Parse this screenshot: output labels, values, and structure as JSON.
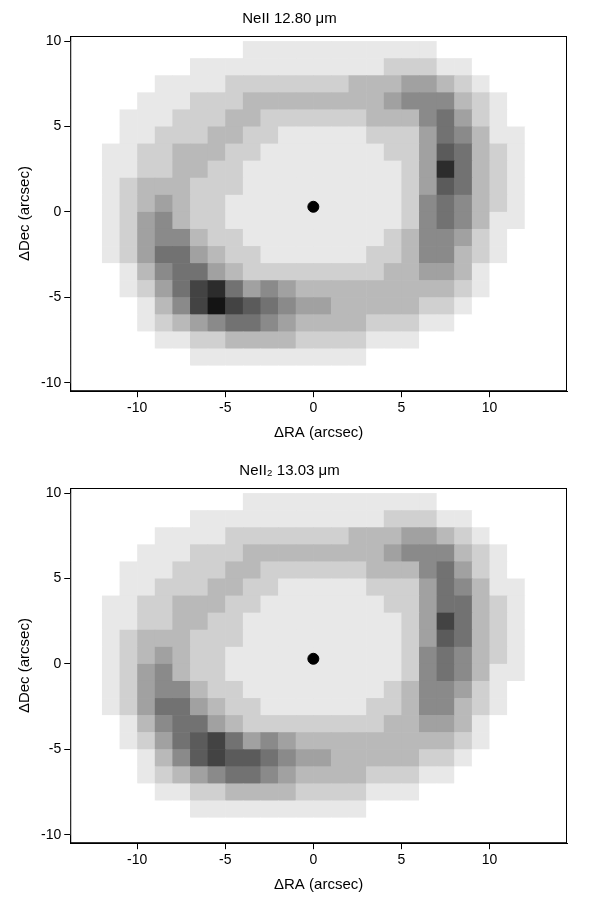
{
  "chart_data": [
    {
      "type": "heatmap",
      "title": "NeII 12.80 μm",
      "x_label": "ΔRA (arcsec)",
      "y_label": "ΔDec (arcsec)",
      "xlim": [
        -13.8,
        14.4
      ],
      "ylim": [
        -10.5,
        10.3
      ],
      "xticks": [
        -10,
        -5,
        0,
        5,
        10
      ],
      "yticks": [
        -10,
        -5,
        0,
        5,
        10
      ],
      "grid": false,
      "x_centers": [
        -13.5,
        -12.5,
        -11.5,
        -10.5,
        -9.5,
        -8.5,
        -7.5,
        -6.5,
        -5.5,
        -4.5,
        -3.5,
        -2.5,
        -1.5,
        -0.5,
        0.5,
        1.5,
        2.5,
        3.5,
        4.5,
        5.5,
        6.5,
        7.5,
        8.5,
        9.5,
        10.5,
        11.5,
        12.5,
        13.5
      ],
      "y_centers": [
        9.5,
        8.5,
        7.5,
        6.5,
        5.5,
        4.5,
        3.5,
        2.5,
        1.5,
        0.5,
        -0.5,
        -1.5,
        -2.5,
        -3.5,
        -4.5,
        -5.5,
        -6.5,
        -7.5,
        -8.5,
        -9.5
      ],
      "zlim": [
        0,
        10
      ],
      "cells": [
        [
          0,
          0,
          0,
          0,
          0,
          0,
          0,
          0,
          0,
          0,
          1,
          1,
          1,
          1,
          1,
          1,
          1,
          1,
          1,
          1,
          1,
          0,
          0,
          0,
          0,
          0,
          0,
          0
        ],
        [
          0,
          0,
          0,
          0,
          0,
          0,
          0,
          1,
          1,
          1,
          1,
          1,
          1,
          1,
          1,
          1,
          1,
          1,
          2,
          2,
          2,
          1,
          1,
          0,
          0,
          0,
          0,
          0
        ],
        [
          0,
          0,
          0,
          0,
          0,
          1,
          1,
          1,
          1,
          2,
          2,
          2,
          2,
          2,
          2,
          2,
          3,
          3,
          3,
          4,
          4,
          3,
          2,
          1,
          0,
          0,
          0,
          0
        ],
        [
          0,
          0,
          0,
          0,
          1,
          1,
          1,
          2,
          2,
          2,
          3,
          3,
          3,
          3,
          3,
          3,
          3,
          3,
          4,
          5,
          5,
          5,
          3,
          2,
          1,
          0,
          0,
          0
        ],
        [
          0,
          0,
          0,
          1,
          1,
          1,
          2,
          2,
          2,
          3,
          3,
          2,
          2,
          2,
          2,
          2,
          2,
          3,
          3,
          3,
          5,
          6,
          4,
          2,
          1,
          0,
          0,
          0
        ],
        [
          0,
          0,
          0,
          1,
          1,
          2,
          2,
          2,
          3,
          3,
          2,
          2,
          1,
          1,
          1,
          1,
          1,
          2,
          2,
          2,
          4,
          6,
          5,
          3,
          1,
          1,
          0,
          0
        ],
        [
          0,
          0,
          1,
          1,
          2,
          2,
          3,
          3,
          3,
          2,
          2,
          1,
          1,
          1,
          1,
          1,
          1,
          1,
          2,
          2,
          4,
          7,
          6,
          3,
          2,
          1,
          0,
          0
        ],
        [
          0,
          0,
          1,
          1,
          2,
          2,
          3,
          3,
          2,
          2,
          1,
          1,
          1,
          1,
          1,
          1,
          1,
          1,
          1,
          2,
          4,
          9,
          6,
          3,
          2,
          1,
          0,
          0
        ],
        [
          0,
          0,
          1,
          2,
          3,
          3,
          3,
          2,
          2,
          2,
          1,
          1,
          1,
          1,
          1,
          1,
          1,
          1,
          1,
          2,
          4,
          7,
          6,
          3,
          2,
          1,
          0,
          0
        ],
        [
          0,
          0,
          1,
          2,
          3,
          4,
          3,
          2,
          2,
          1,
          1,
          1,
          1,
          1,
          1,
          1,
          1,
          1,
          1,
          2,
          5,
          6,
          5,
          3,
          2,
          1,
          0,
          0
        ],
        [
          0,
          0,
          1,
          2,
          4,
          5,
          3,
          2,
          2,
          1,
          1,
          1,
          1,
          1,
          1,
          1,
          1,
          1,
          1,
          2,
          5,
          6,
          5,
          3,
          1,
          1,
          0,
          0
        ],
        [
          0,
          0,
          1,
          2,
          4,
          5,
          5,
          3,
          2,
          2,
          1,
          1,
          1,
          1,
          1,
          1,
          1,
          1,
          2,
          3,
          5,
          5,
          4,
          2,
          1,
          0,
          0,
          0
        ],
        [
          0,
          0,
          1,
          2,
          4,
          6,
          6,
          4,
          3,
          2,
          2,
          1,
          1,
          1,
          1,
          1,
          1,
          2,
          2,
          3,
          5,
          5,
          3,
          2,
          1,
          0,
          0,
          0
        ],
        [
          0,
          0,
          0,
          1,
          3,
          5,
          6,
          6,
          4,
          3,
          2,
          2,
          2,
          2,
          2,
          2,
          2,
          2,
          3,
          3,
          4,
          4,
          3,
          1,
          0,
          0,
          0,
          0
        ],
        [
          0,
          0,
          0,
          1,
          2,
          4,
          6,
          8,
          9,
          6,
          4,
          5,
          4,
          3,
          3,
          3,
          3,
          3,
          3,
          3,
          3,
          3,
          2,
          1,
          0,
          0,
          0,
          0
        ],
        [
          0,
          0,
          0,
          0,
          1,
          3,
          5,
          8,
          10,
          8,
          7,
          6,
          5,
          4,
          4,
          3,
          3,
          3,
          3,
          3,
          2,
          2,
          1,
          0,
          0,
          0,
          0,
          0
        ],
        [
          0,
          0,
          0,
          0,
          1,
          2,
          3,
          4,
          5,
          6,
          6,
          5,
          4,
          3,
          3,
          3,
          3,
          2,
          2,
          2,
          1,
          1,
          0,
          0,
          0,
          0,
          0,
          0
        ],
        [
          0,
          0,
          0,
          0,
          0,
          1,
          1,
          2,
          2,
          3,
          3,
          3,
          3,
          2,
          2,
          2,
          2,
          1,
          1,
          1,
          0,
          0,
          0,
          0,
          0,
          0,
          0,
          0
        ],
        [
          0,
          0,
          0,
          0,
          0,
          0,
          0,
          1,
          1,
          1,
          1,
          1,
          1,
          1,
          1,
          1,
          1,
          0,
          0,
          0,
          0,
          0,
          0,
          0,
          0,
          0,
          0,
          0
        ],
        [
          0,
          0,
          0,
          0,
          0,
          0,
          0,
          0,
          0,
          0,
          0,
          0,
          0,
          0,
          0,
          0,
          0,
          0,
          0,
          0,
          0,
          0,
          0,
          0,
          0,
          0,
          0,
          0
        ]
      ],
      "points": {
        "x": [
          0
        ],
        "y": [
          0.3
        ],
        "color": "#000000",
        "marker": "circle"
      }
    },
    {
      "type": "heatmap",
      "title": "NeII₂ 13.03 μm",
      "x_label": "ΔRA (arcsec)",
      "y_label": "ΔDec (arcsec)",
      "xlim": [
        -13.8,
        14.4
      ],
      "ylim": [
        -10.5,
        10.3
      ],
      "xticks": [
        -10,
        -5,
        0,
        5,
        10
      ],
      "yticks": [
        -10,
        -5,
        0,
        5,
        10
      ],
      "grid": false,
      "x_centers": [
        -13.5,
        -12.5,
        -11.5,
        -10.5,
        -9.5,
        -8.5,
        -7.5,
        -6.5,
        -5.5,
        -4.5,
        -3.5,
        -2.5,
        -1.5,
        -0.5,
        0.5,
        1.5,
        2.5,
        3.5,
        4.5,
        5.5,
        6.5,
        7.5,
        8.5,
        9.5,
        10.5,
        11.5,
        12.5,
        13.5
      ],
      "y_centers": [
        9.5,
        8.5,
        7.5,
        6.5,
        5.5,
        4.5,
        3.5,
        2.5,
        1.5,
        0.5,
        -0.5,
        -1.5,
        -2.5,
        -3.5,
        -4.5,
        -5.5,
        -6.5,
        -7.5,
        -8.5,
        -9.5
      ],
      "zlim": [
        0,
        10
      ],
      "cells": [
        [
          0,
          0,
          0,
          0,
          0,
          0,
          0,
          0,
          0,
          0,
          1,
          1,
          1,
          1,
          1,
          1,
          1,
          1,
          1,
          1,
          1,
          0,
          0,
          0,
          0,
          0,
          0,
          0
        ],
        [
          0,
          0,
          0,
          0,
          0,
          0,
          0,
          1,
          1,
          1,
          1,
          1,
          1,
          1,
          1,
          1,
          1,
          1,
          2,
          2,
          2,
          1,
          1,
          0,
          0,
          0,
          0,
          0
        ],
        [
          0,
          0,
          0,
          0,
          0,
          1,
          1,
          1,
          1,
          2,
          2,
          2,
          2,
          2,
          2,
          2,
          3,
          3,
          3,
          4,
          4,
          3,
          2,
          1,
          0,
          0,
          0,
          0
        ],
        [
          0,
          0,
          0,
          0,
          1,
          1,
          1,
          2,
          2,
          2,
          3,
          3,
          3,
          3,
          3,
          3,
          3,
          3,
          4,
          5,
          5,
          5,
          3,
          2,
          1,
          0,
          0,
          0
        ],
        [
          0,
          0,
          0,
          1,
          1,
          1,
          2,
          2,
          2,
          3,
          3,
          2,
          2,
          2,
          2,
          2,
          2,
          3,
          3,
          3,
          5,
          6,
          4,
          2,
          1,
          0,
          0,
          0
        ],
        [
          0,
          0,
          0,
          1,
          1,
          2,
          2,
          2,
          3,
          3,
          2,
          2,
          1,
          1,
          1,
          1,
          1,
          2,
          2,
          2,
          4,
          6,
          5,
          3,
          1,
          1,
          0,
          0
        ],
        [
          0,
          0,
          1,
          1,
          2,
          2,
          3,
          3,
          3,
          2,
          2,
          1,
          1,
          1,
          1,
          1,
          1,
          1,
          2,
          2,
          4,
          6,
          6,
          3,
          2,
          1,
          0,
          0
        ],
        [
          0,
          0,
          1,
          1,
          2,
          2,
          3,
          3,
          2,
          2,
          1,
          1,
          1,
          1,
          1,
          1,
          1,
          1,
          1,
          2,
          4,
          8,
          6,
          3,
          2,
          1,
          0,
          0
        ],
        [
          0,
          0,
          1,
          2,
          3,
          3,
          3,
          2,
          2,
          2,
          1,
          1,
          1,
          1,
          1,
          1,
          1,
          1,
          1,
          2,
          4,
          7,
          6,
          3,
          2,
          1,
          0,
          0
        ],
        [
          0,
          0,
          1,
          2,
          3,
          4,
          3,
          2,
          2,
          1,
          1,
          1,
          1,
          1,
          1,
          1,
          1,
          1,
          1,
          2,
          5,
          6,
          5,
          3,
          2,
          1,
          0,
          0
        ],
        [
          0,
          0,
          1,
          2,
          4,
          5,
          3,
          2,
          2,
          1,
          1,
          1,
          1,
          1,
          1,
          1,
          1,
          1,
          1,
          2,
          5,
          6,
          5,
          3,
          1,
          1,
          0,
          0
        ],
        [
          0,
          0,
          1,
          2,
          4,
          5,
          5,
          3,
          2,
          2,
          1,
          1,
          1,
          1,
          1,
          1,
          1,
          1,
          2,
          3,
          5,
          5,
          4,
          2,
          1,
          0,
          0,
          0
        ],
        [
          0,
          0,
          1,
          2,
          4,
          6,
          6,
          4,
          3,
          2,
          2,
          1,
          1,
          1,
          1,
          1,
          1,
          2,
          2,
          3,
          5,
          5,
          3,
          2,
          1,
          0,
          0,
          0
        ],
        [
          0,
          0,
          0,
          1,
          3,
          5,
          6,
          6,
          4,
          3,
          2,
          2,
          2,
          2,
          2,
          2,
          2,
          2,
          3,
          3,
          4,
          4,
          3,
          1,
          0,
          0,
          0,
          0
        ],
        [
          0,
          0,
          0,
          1,
          2,
          4,
          6,
          7,
          8,
          6,
          4,
          5,
          4,
          3,
          3,
          3,
          3,
          3,
          3,
          3,
          3,
          3,
          2,
          1,
          0,
          0,
          0,
          0
        ],
        [
          0,
          0,
          0,
          0,
          1,
          3,
          5,
          7,
          8,
          7,
          7,
          6,
          5,
          4,
          4,
          3,
          3,
          3,
          3,
          3,
          2,
          2,
          1,
          0,
          0,
          0,
          0,
          0
        ],
        [
          0,
          0,
          0,
          0,
          1,
          2,
          3,
          4,
          5,
          6,
          6,
          5,
          4,
          3,
          3,
          3,
          3,
          2,
          2,
          2,
          1,
          1,
          0,
          0,
          0,
          0,
          0,
          0
        ],
        [
          0,
          0,
          0,
          0,
          0,
          1,
          1,
          2,
          2,
          3,
          3,
          3,
          3,
          2,
          2,
          2,
          2,
          1,
          1,
          1,
          0,
          0,
          0,
          0,
          0,
          0,
          0,
          0
        ],
        [
          0,
          0,
          0,
          0,
          0,
          0,
          0,
          1,
          1,
          1,
          1,
          1,
          1,
          1,
          1,
          1,
          1,
          0,
          0,
          0,
          0,
          0,
          0,
          0,
          0,
          0,
          0,
          0
        ],
        [
          0,
          0,
          0,
          0,
          0,
          0,
          0,
          0,
          0,
          0,
          0,
          0,
          0,
          0,
          0,
          0,
          0,
          0,
          0,
          0,
          0,
          0,
          0,
          0,
          0,
          0,
          0,
          0
        ]
      ],
      "points": {
        "x": [
          0
        ],
        "y": [
          0.3
        ],
        "color": "#000000",
        "marker": "circle"
      }
    }
  ]
}
